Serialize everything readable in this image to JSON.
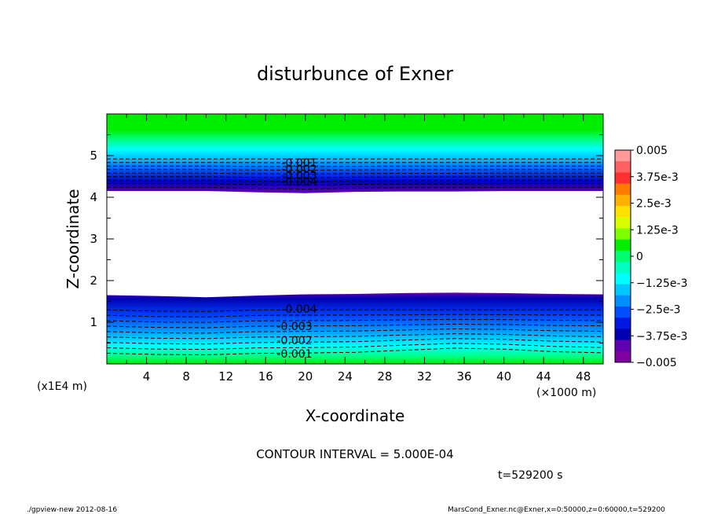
{
  "chart_data": {
    "type": "heatmap",
    "title": "disturbunce of Exner",
    "xlabel": "X-coordinate",
    "ylabel": "Z-coordinate",
    "x_unit_label": "(×1000 m)",
    "y_unit_label": "(x1E4 m)",
    "xlim": [
      0,
      50
    ],
    "ylim": [
      0,
      6
    ],
    "x_ticks": [
      "4",
      "8",
      "12",
      "16",
      "20",
      "24",
      "28",
      "32",
      "36",
      "40",
      "44",
      "48"
    ],
    "y_ticks": [
      "1",
      "2",
      "3",
      "4",
      "5"
    ],
    "contour_interval_text": "CONTOUR INTERVAL = 5.000E-04",
    "time_text": "t=529200 s",
    "colorbar": {
      "range": [
        -0.005,
        0.005
      ],
      "labels": [
        "0.005",
        "3.75e-3",
        "2.5e-3",
        "1.25e-3",
        "0",
        "−1.25e-3",
        "−2.5e-3",
        "−3.75e-3",
        "−0.005"
      ],
      "colors": [
        "#ff9a9a",
        "#ff6060",
        "#ff3030",
        "#ff7a00",
        "#ffb000",
        "#ffe000",
        "#d8ff00",
        "#80ff00",
        "#00ee00",
        "#00ff70",
        "#00ffc0",
        "#00ffff",
        "#00c8ff",
        "#0090ff",
        "#0050ff",
        "#0018e0",
        "#0000b0",
        "#6000b0",
        "#8000a0"
      ]
    },
    "upper_band": {
      "z_top_boundary": [
        4.15,
        4.15,
        4.15,
        4.12,
        4.1,
        4.13,
        4.14,
        4.14,
        4.15,
        4.15,
        4.15
      ],
      "contour_labels": [
        "-0.001",
        "-0.002",
        "-0.003",
        "-0.004"
      ]
    },
    "lower_band": {
      "z_boundary": [
        1.65,
        1.63,
        1.6,
        1.64,
        1.67,
        1.68,
        1.7,
        1.71,
        1.7,
        1.68,
        1.67
      ],
      "contour_labels": [
        "-0.004",
        "-0.003",
        "-0.002",
        "-0.001"
      ]
    }
  },
  "footer": {
    "left": "./gpview-new   2012-08-16",
    "right": "MarsCond_Exner.nc@Exner,x=0:50000,z=0:60000,t=529200"
  }
}
